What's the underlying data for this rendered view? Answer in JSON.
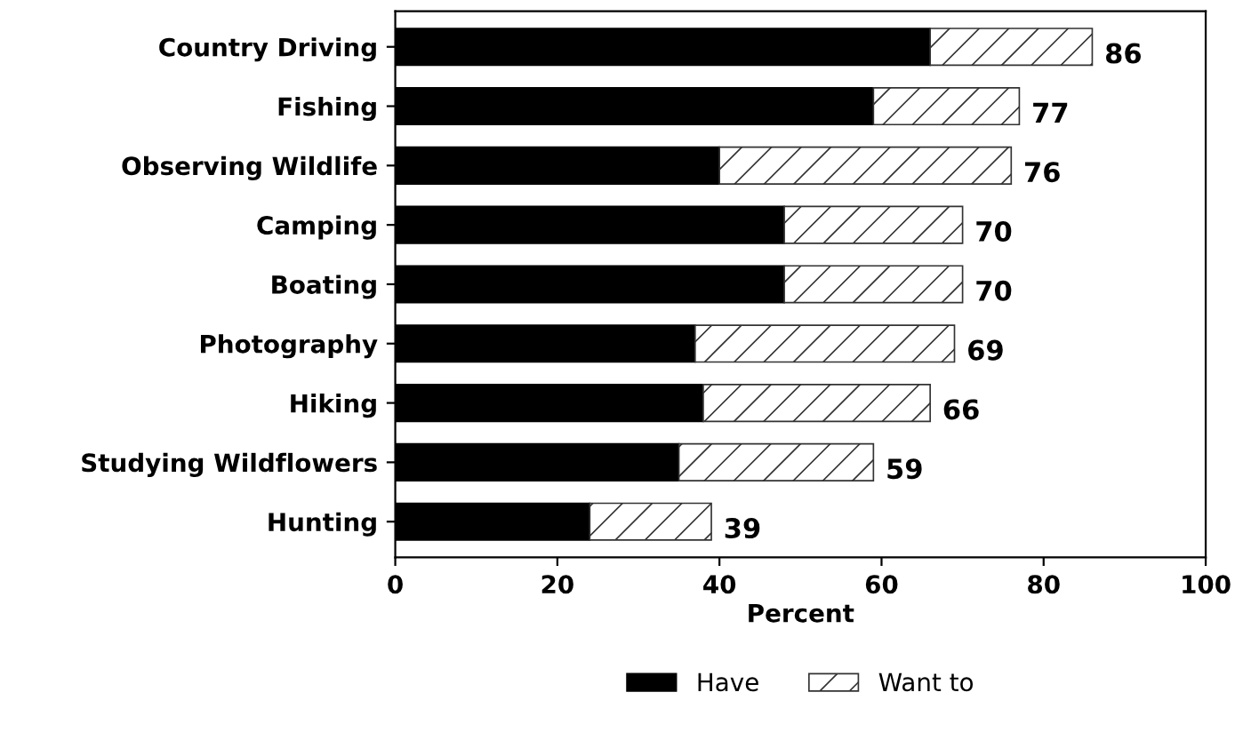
{
  "chart_data": {
    "type": "bar",
    "orientation": "horizontal",
    "stacked": true,
    "xlabel": "Percent",
    "categories": [
      "Country Driving",
      "Fishing",
      "Observing Wildlife",
      "Camping",
      "Boating",
      "Photography",
      "Hiking",
      "Studying Wildflowers",
      "Hunting"
    ],
    "series": [
      {
        "name": "Have",
        "color": "#000000",
        "values": [
          66,
          59,
          40,
          48,
          48,
          37,
          38,
          35,
          24
        ]
      },
      {
        "name": "Want to",
        "color": "#333333",
        "values": [
          20,
          18,
          36,
          22,
          22,
          32,
          28,
          24,
          15
        ]
      }
    ],
    "totals": [
      "86",
      "77",
      "76",
      "70",
      "70",
      "69",
      "66",
      "59",
      "39"
    ],
    "xlim": [
      0,
      100
    ],
    "xticks": [
      0,
      20,
      40,
      60,
      80,
      100
    ],
    "grid": false,
    "legend": "bottom"
  }
}
